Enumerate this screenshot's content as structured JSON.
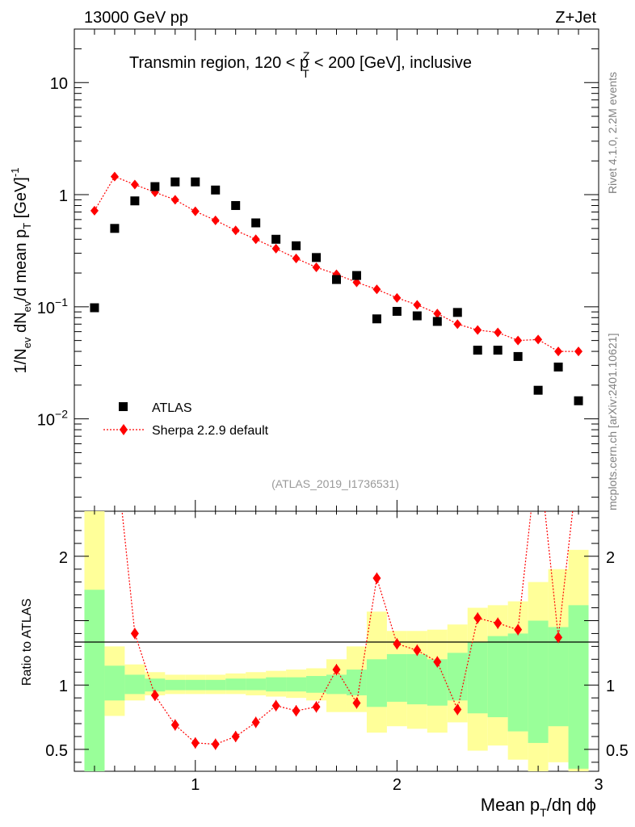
{
  "header": {
    "left": "13000 GeV pp",
    "right": "Z+Jet"
  },
  "chart_data": {
    "type": "scatter",
    "title_main": "Transmin region, 120 < p",
    "title_sup": "Z",
    "title_sub": "T",
    "title_rest": " < 200 [GeV], inclusive",
    "ylabel": {
      "a": "1/N",
      "a_sub": "ev",
      "b": " dN",
      "b_sub": "ev",
      "c": "/d mean p",
      "c_sub": "T",
      "d": " [GeV]",
      "d_sup": "-1"
    },
    "xlabel": {
      "a": "Mean p",
      "a_sub": "T",
      "b": "/dη dϕ"
    },
    "ratio_ylabel": "Ratio to ATLAS",
    "analysis_id": "(ATLAS_2019_I1736531)",
    "side_rivet": "Rivet 4.1.0,  2.2M events",
    "side_mcplots": "mcplots.cern.ch [arXiv:2401.10621]",
    "xlim": [
      0.4,
      3.0
    ],
    "ylim": [
      0.0015,
      30
    ],
    "ratio_ylim": [
      0.33,
      2.35
    ],
    "x_ticks": [
      "1",
      "2",
      "3"
    ],
    "y_ticks": [
      {
        "base": "10",
        "exp": "−2"
      },
      {
        "base": "10",
        "exp": "−1"
      },
      {
        "base": "1",
        "exp": ""
      },
      {
        "base": "10",
        "exp": ""
      }
    ],
    "ratio_ticks": [
      "0.5",
      "1",
      "2"
    ],
    "legend": {
      "atlas": "ATLAS",
      "sherpa": "Sherpa 2.2.9 default"
    },
    "x": [
      0.5,
      0.6,
      0.7,
      0.8,
      0.9,
      1.0,
      1.1,
      1.2,
      1.3,
      1.4,
      1.5,
      1.6,
      1.7,
      1.8,
      1.9,
      2.0,
      2.1,
      2.2,
      2.3,
      2.4,
      2.5,
      2.6,
      2.7,
      2.8,
      2.9
    ],
    "series": [
      {
        "name": "ATLAS",
        "color": "#000000",
        "values": [
          0.098,
          0.5,
          0.88,
          1.18,
          1.3,
          1.3,
          1.1,
          0.8,
          0.56,
          0.4,
          0.35,
          0.275,
          0.175,
          0.19,
          0.078,
          0.091,
          0.083,
          0.074,
          0.089,
          0.041,
          0.041,
          0.036,
          0.018,
          0.029,
          0.0145
        ]
      },
      {
        "name": "Sherpa 2.2.9 default",
        "color": "#ff0000",
        "values": [
          0.72,
          1.45,
          1.23,
          1.05,
          0.9,
          0.71,
          0.59,
          0.48,
          0.4,
          0.33,
          0.27,
          0.225,
          0.195,
          0.165,
          0.143,
          0.12,
          0.104,
          0.087,
          0.07,
          0.062,
          0.059,
          0.05,
          0.051,
          0.04,
          0.04
        ]
      }
    ],
    "ratio": {
      "values": [
        7.3,
        2.9,
        1.4,
        0.92,
        0.69,
        0.55,
        0.54,
        0.6,
        0.71,
        0.84,
        0.8,
        0.83,
        1.12,
        0.86,
        1.83,
        1.32,
        1.27,
        1.18,
        0.81,
        1.52,
        1.48,
        1.43,
        2.85,
        1.37,
        2.75
      ],
      "green_bands": [
        [
          0.33,
          1.74
        ],
        [
          0.88,
          1.15
        ],
        [
          0.93,
          1.08
        ],
        [
          0.95,
          1.05
        ],
        [
          0.96,
          1.04
        ],
        [
          0.96,
          1.04
        ],
        [
          0.96,
          1.04
        ],
        [
          0.96,
          1.05
        ],
        [
          0.96,
          1.05
        ],
        [
          0.95,
          1.06
        ],
        [
          0.95,
          1.06
        ],
        [
          0.94,
          1.07
        ],
        [
          0.93,
          1.08
        ],
        [
          0.92,
          1.12
        ],
        [
          0.83,
          1.2
        ],
        [
          0.87,
          1.24
        ],
        [
          0.85,
          1.24
        ],
        [
          0.84,
          1.2
        ],
        [
          0.88,
          1.25
        ],
        [
          0.78,
          1.33
        ],
        [
          0.75,
          1.38
        ],
        [
          0.64,
          1.4
        ],
        [
          0.55,
          1.5
        ],
        [
          0.68,
          1.45
        ],
        [
          0.35,
          1.62
        ]
      ],
      "yellow_bands": [
        [
          0.33,
          2.35
        ],
        [
          0.76,
          1.3
        ],
        [
          0.88,
          1.16
        ],
        [
          0.92,
          1.1
        ],
        [
          0.93,
          1.08
        ],
        [
          0.93,
          1.08
        ],
        [
          0.93,
          1.08
        ],
        [
          0.93,
          1.09
        ],
        [
          0.92,
          1.1
        ],
        [
          0.91,
          1.11
        ],
        [
          0.9,
          1.12
        ],
        [
          0.88,
          1.13
        ],
        [
          0.79,
          1.2
        ],
        [
          0.79,
          1.3
        ],
        [
          0.63,
          1.57
        ],
        [
          0.68,
          1.42
        ],
        [
          0.66,
          1.42
        ],
        [
          0.63,
          1.43
        ],
        [
          0.71,
          1.47
        ],
        [
          0.49,
          1.6
        ],
        [
          0.53,
          1.62
        ],
        [
          0.42,
          1.65
        ],
        [
          0.33,
          1.8
        ],
        [
          0.4,
          1.9
        ],
        [
          0.33,
          2.05
        ]
      ]
    }
  }
}
